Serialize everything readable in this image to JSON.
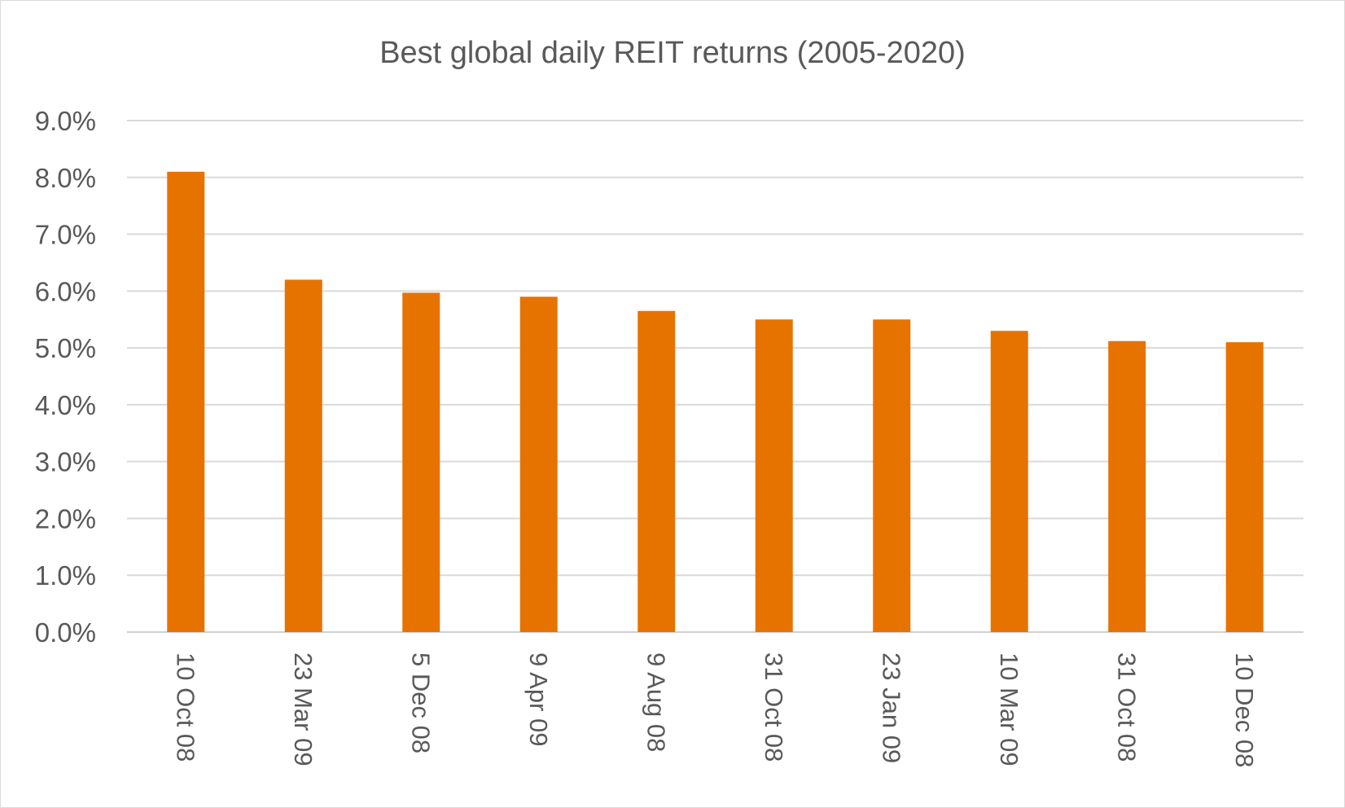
{
  "chart_data": {
    "type": "bar",
    "title": "Best global daily REIT returns (2005-2020)",
    "xlabel": "",
    "ylabel": "",
    "categories": [
      "10 Oct 08",
      "23 Mar 09",
      "5 Dec 08",
      "9 Apr 09",
      "9 Aug 08",
      "31 Oct 08",
      "23 Jan 09",
      "10 Mar 09",
      "31 Oct 08",
      "10 Dec 08"
    ],
    "values": [
      8.1,
      6.2,
      5.97,
      5.9,
      5.65,
      5.5,
      5.5,
      5.3,
      5.12,
      5.1
    ],
    "ylim": [
      0,
      9
    ],
    "yticks": [
      "0.0%",
      "1.0%",
      "2.0%",
      "3.0%",
      "4.0%",
      "5.0%",
      "6.0%",
      "7.0%",
      "8.0%",
      "9.0%"
    ],
    "grid": true,
    "legend": "none",
    "bar_color": "#e67300"
  }
}
